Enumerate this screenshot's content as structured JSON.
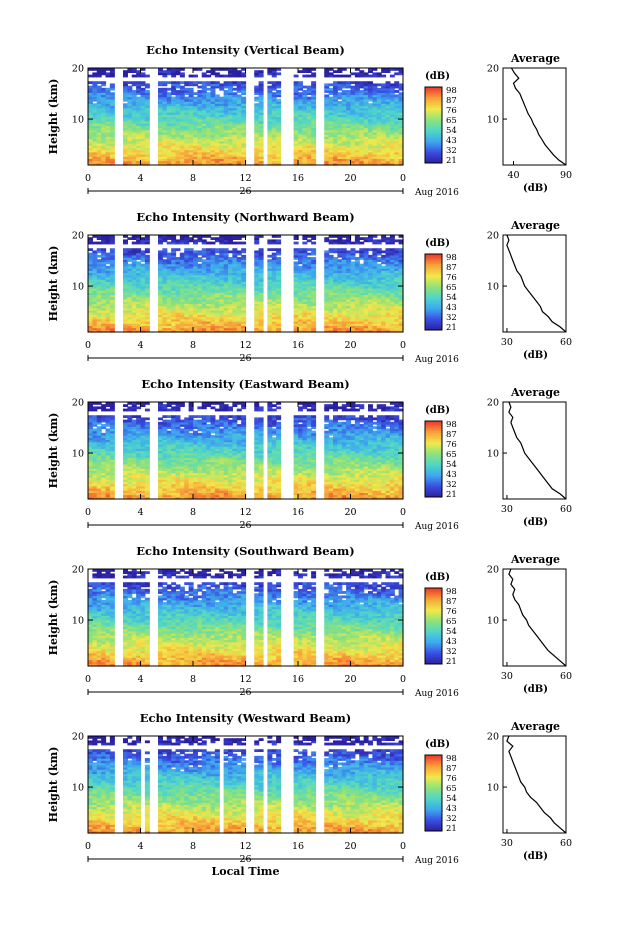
{
  "chart_data": [
    {
      "type": "heatmap",
      "title": "Echo Intensity (Vertical Beam)",
      "ylabel": "Height (km)",
      "y_ticks": [
        "20",
        "10"
      ],
      "ylim": [
        1,
        20
      ],
      "x_ticks": [
        "0",
        "4",
        "8",
        "12",
        "16",
        "20",
        "0"
      ],
      "xlim": [
        0,
        24
      ],
      "date_label": "26",
      "date_suffix": "Aug 2016",
      "colorbar": {
        "label": "(dB)",
        "ticks": [
          "98",
          "87",
          "76",
          "65",
          "54",
          "43",
          "32",
          "21"
        ],
        "range": [
          21,
          98
        ]
      },
      "gaps": [
        [
          2.0,
          2.7
        ],
        [
          4.8,
          5.4
        ],
        [
          12.1,
          12.6
        ],
        [
          13.2,
          13.7
        ],
        [
          14.8,
          15.8
        ],
        [
          17.5,
          18.0
        ]
      ],
      "avg": {
        "title": "Average",
        "xlabel": "(dB)",
        "x_ticks": [
          "40",
          "90"
        ],
        "xlim": [
          30,
          90
        ],
        "y_ticks": [
          "20",
          "10"
        ],
        "profile": [
          [
            1,
            90
          ],
          [
            2,
            83
          ],
          [
            3,
            78
          ],
          [
            4,
            74
          ],
          [
            5,
            70
          ],
          [
            6,
            67
          ],
          [
            7,
            64
          ],
          [
            8,
            62
          ],
          [
            9,
            59
          ],
          [
            10,
            57
          ],
          [
            11,
            54
          ],
          [
            12,
            52
          ],
          [
            13,
            50
          ],
          [
            14,
            48
          ],
          [
            15,
            46
          ],
          [
            16,
            42
          ],
          [
            17,
            40
          ],
          [
            18,
            45
          ],
          [
            19,
            41
          ],
          [
            20,
            38
          ]
        ]
      }
    },
    {
      "type": "heatmap",
      "title": "Echo Intensity (Northward Beam)",
      "ylabel": "Height (km)",
      "y_ticks": [
        "20",
        "10"
      ],
      "ylim": [
        1,
        20
      ],
      "x_ticks": [
        "0",
        "4",
        "8",
        "12",
        "16",
        "20",
        "0"
      ],
      "xlim": [
        0,
        24
      ],
      "date_label": "26",
      "date_suffix": "Aug 2016",
      "colorbar": {
        "label": "(dB)",
        "ticks": [
          "98",
          "87",
          "76",
          "65",
          "54",
          "43",
          "32",
          "21"
        ],
        "range": [
          21,
          98
        ]
      },
      "gaps": [
        [
          2.0,
          2.7
        ],
        [
          4.8,
          5.4
        ],
        [
          12.1,
          12.6
        ],
        [
          13.2,
          13.7
        ],
        [
          14.8,
          15.8
        ],
        [
          17.5,
          18.0
        ]
      ],
      "avg": {
        "title": "Average",
        "xlabel": "(dB)",
        "x_ticks": [
          "30",
          "60"
        ],
        "xlim": [
          28,
          60
        ],
        "y_ticks": [
          "20",
          "10"
        ],
        "profile": [
          [
            1,
            60
          ],
          [
            2,
            57
          ],
          [
            3,
            53
          ],
          [
            4,
            51
          ],
          [
            5,
            48
          ],
          [
            6,
            47
          ],
          [
            7,
            45
          ],
          [
            8,
            43
          ],
          [
            9,
            41
          ],
          [
            10,
            39
          ],
          [
            11,
            38
          ],
          [
            12,
            37
          ],
          [
            13,
            35
          ],
          [
            14,
            34
          ],
          [
            15,
            33
          ],
          [
            16,
            32
          ],
          [
            17,
            31
          ],
          [
            18,
            30
          ],
          [
            19,
            31
          ],
          [
            20,
            30
          ]
        ]
      }
    },
    {
      "type": "heatmap",
      "title": "Echo Intensity (Eastward Beam)",
      "ylabel": "Height (km)",
      "y_ticks": [
        "20",
        "10"
      ],
      "ylim": [
        1,
        20
      ],
      "x_ticks": [
        "0",
        "4",
        "8",
        "12",
        "16",
        "20",
        "0"
      ],
      "xlim": [
        0,
        24
      ],
      "date_label": "26",
      "date_suffix": "Aug 2016",
      "colorbar": {
        "label": "(dB)",
        "ticks": [
          "98",
          "87",
          "76",
          "65",
          "54",
          "43",
          "32",
          "21"
        ],
        "range": [
          21,
          98
        ]
      },
      "gaps": [
        [
          2.0,
          2.7
        ],
        [
          4.8,
          5.4
        ],
        [
          12.1,
          12.6
        ],
        [
          13.2,
          13.7
        ],
        [
          14.8,
          15.8
        ],
        [
          17.5,
          18.0
        ]
      ],
      "avg": {
        "title": "Average",
        "xlabel": "(dB)",
        "x_ticks": [
          "30",
          "60"
        ],
        "xlim": [
          28,
          60
        ],
        "y_ticks": [
          "20",
          "10"
        ],
        "profile": [
          [
            1,
            60
          ],
          [
            2,
            57
          ],
          [
            3,
            53
          ],
          [
            4,
            51
          ],
          [
            5,
            49
          ],
          [
            6,
            47
          ],
          [
            7,
            45
          ],
          [
            8,
            43
          ],
          [
            9,
            41
          ],
          [
            10,
            39
          ],
          [
            11,
            38
          ],
          [
            12,
            37
          ],
          [
            13,
            35
          ],
          [
            14,
            34
          ],
          [
            15,
            33
          ],
          [
            16,
            32
          ],
          [
            17,
            33
          ],
          [
            18,
            31
          ],
          [
            19,
            32
          ],
          [
            20,
            31
          ]
        ]
      }
    },
    {
      "type": "heatmap",
      "title": "Echo Intensity (Southward Beam)",
      "ylabel": "Height (km)",
      "y_ticks": [
        "20",
        "10"
      ],
      "ylim": [
        1,
        20
      ],
      "x_ticks": [
        "0",
        "4",
        "8",
        "12",
        "16",
        "20",
        "0"
      ],
      "xlim": [
        0,
        24
      ],
      "date_label": "26",
      "date_suffix": "Aug 2016",
      "colorbar": {
        "label": "(dB)",
        "ticks": [
          "98",
          "87",
          "76",
          "65",
          "54",
          "43",
          "32",
          "21"
        ],
        "range": [
          21,
          98
        ]
      },
      "gaps": [
        [
          2.0,
          2.7
        ],
        [
          4.8,
          5.4
        ],
        [
          12.1,
          12.6
        ],
        [
          13.2,
          13.7
        ],
        [
          14.8,
          15.8
        ],
        [
          17.5,
          18.0
        ]
      ],
      "avg": {
        "title": "Average",
        "xlabel": "(dB)",
        "x_ticks": [
          "30",
          "60"
        ],
        "xlim": [
          28,
          60
        ],
        "y_ticks": [
          "20",
          "10"
        ],
        "profile": [
          [
            1,
            60
          ],
          [
            2,
            57
          ],
          [
            3,
            54
          ],
          [
            4,
            51
          ],
          [
            5,
            49
          ],
          [
            6,
            47
          ],
          [
            7,
            45
          ],
          [
            8,
            43
          ],
          [
            9,
            41
          ],
          [
            10,
            40
          ],
          [
            11,
            38
          ],
          [
            12,
            37
          ],
          [
            13,
            36
          ],
          [
            14,
            34
          ],
          [
            15,
            33
          ],
          [
            16,
            34
          ],
          [
            17,
            32
          ],
          [
            18,
            33
          ],
          [
            19,
            31
          ],
          [
            20,
            32
          ]
        ]
      }
    },
    {
      "type": "heatmap",
      "title": "Echo Intensity (Westward Beam)",
      "ylabel": "Height (km)",
      "y_ticks": [
        "20",
        "10"
      ],
      "ylim": [
        1,
        20
      ],
      "x_ticks": [
        "0",
        "4",
        "8",
        "12",
        "16",
        "20",
        "0"
      ],
      "xlim": [
        0,
        24
      ],
      "date_label": "26",
      "date_suffix": "Aug 2016",
      "xlabel": "Local Time",
      "colorbar": {
        "label": "(dB)",
        "ticks": [
          "98",
          "87",
          "76",
          "65",
          "54",
          "43",
          "32",
          "21"
        ],
        "range": [
          21,
          98
        ]
      },
      "gaps": [
        [
          2.0,
          2.7
        ],
        [
          4.0,
          4.3
        ],
        [
          4.8,
          5.4
        ],
        [
          10.1,
          10.4
        ],
        [
          12.1,
          12.6
        ],
        [
          13.2,
          13.7
        ],
        [
          14.8,
          15.8
        ],
        [
          17.5,
          18.0
        ]
      ],
      "avg": {
        "title": "Average",
        "xlabel": "(dB)",
        "x_ticks": [
          "30",
          "60"
        ],
        "xlim": [
          28,
          60
        ],
        "y_ticks": [
          "20",
          "10"
        ],
        "profile": [
          [
            1,
            60
          ],
          [
            2,
            57
          ],
          [
            3,
            54
          ],
          [
            4,
            52
          ],
          [
            5,
            49
          ],
          [
            6,
            47
          ],
          [
            7,
            45
          ],
          [
            8,
            42
          ],
          [
            9,
            40
          ],
          [
            10,
            39
          ],
          [
            11,
            37
          ],
          [
            12,
            36
          ],
          [
            13,
            35
          ],
          [
            14,
            34
          ],
          [
            15,
            33
          ],
          [
            16,
            32
          ],
          [
            17,
            31
          ],
          [
            18,
            33
          ],
          [
            19,
            30
          ],
          [
            20,
            31
          ]
        ]
      }
    }
  ],
  "colors": {
    "scale": [
      "#2b1f9e",
      "#3a4de0",
      "#3ea7f0",
      "#4fd6c9",
      "#8fe27a",
      "#f2e84a",
      "#f7a23a",
      "#ee3a2c"
    ]
  }
}
